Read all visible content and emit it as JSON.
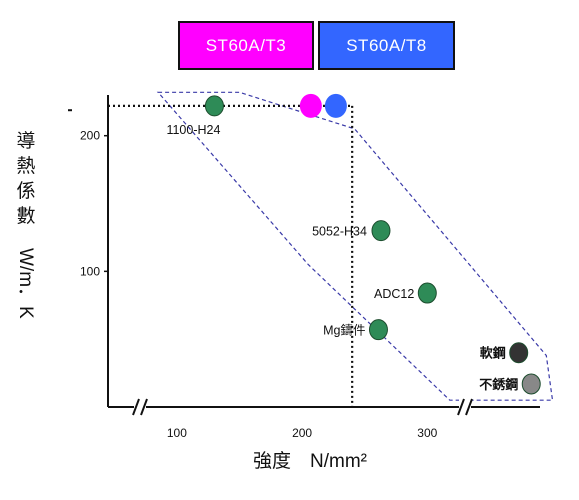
{
  "legend": {
    "items": [
      {
        "label": "ST60A/T3",
        "color": "#ff00ff"
      },
      {
        "label": "ST60A/T8",
        "color": "#3366ff"
      }
    ]
  },
  "chart_data": {
    "type": "scatter",
    "title": "",
    "xlabel": "強度　N/mm²",
    "ylabel": "導熱係數　W/m．K",
    "xlim": [
      45,
      390
    ],
    "ylim": [
      0,
      230
    ],
    "x_ticks": [
      "100",
      "200",
      "300"
    ],
    "y_ticks": [
      "100",
      "200"
    ],
    "axis_breaks": [
      "x-start",
      "x-end"
    ],
    "grid": false,
    "points": [
      {
        "label": "1100-H24",
        "x": 130,
        "y": 222,
        "color": "#2e8b57"
      },
      {
        "label": "",
        "x": 207,
        "y": 222,
        "color": "#ff00ff"
      },
      {
        "label": "",
        "x": 227,
        "y": 222,
        "color": "#3366ff"
      },
      {
        "label": "5052-H34",
        "x": 263,
        "y": 130,
        "color": "#2e8b57"
      },
      {
        "label": "ADC12",
        "x": 300,
        "y": 84,
        "color": "#2e8b57"
      },
      {
        "label": "Mg鑄件",
        "x": 261,
        "y": 57,
        "color": "#2e8b57"
      },
      {
        "label": "軟鋼",
        "x": 373,
        "y": 40,
        "color": "#333333"
      },
      {
        "label": "不銹鋼",
        "x": 383,
        "y": 17,
        "color": "#888888"
      }
    ],
    "reference_lines": {
      "x": 240,
      "y": 222
    }
  }
}
